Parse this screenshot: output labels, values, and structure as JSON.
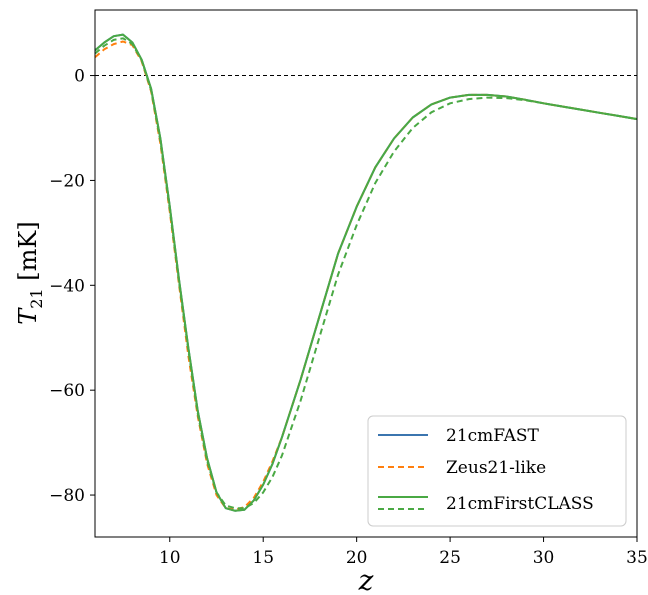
{
  "chart_data": {
    "type": "line",
    "xlabel": "z",
    "ylabel_main": "T",
    "ylabel_sub": "21",
    "ylabel_unit": " [mK]",
    "xlim": [
      6,
      35
    ],
    "ylim": [
      -88,
      12.5
    ],
    "xticks": [
      10,
      15,
      20,
      25,
      30,
      35
    ],
    "yticks": [
      0,
      -20,
      -40,
      -60,
      -80
    ],
    "ytick_labels": [
      "0",
      "−20",
      "−40",
      "−60",
      "−80"
    ],
    "hline": {
      "y": 0,
      "style": "dashed",
      "color": "#000000"
    },
    "legend_position": "lower-right",
    "series": [
      {
        "name": "21cmFAST",
        "color": "#3b75af",
        "style": "solid",
        "x": [
          6,
          6.5,
          7,
          7.5,
          8,
          8.5,
          9,
          9.5,
          10,
          10.5,
          11,
          11.5,
          12,
          12.5,
          13,
          13.5,
          14,
          14.5,
          15,
          15.5,
          16,
          17,
          18,
          19,
          20,
          21,
          22,
          23,
          24,
          25,
          26,
          27,
          28,
          29,
          30,
          31,
          32,
          33,
          34,
          35
        ],
        "y": [
          4.8,
          6.3,
          7.5,
          7.8,
          6.3,
          3.0,
          -2.5,
          -12.0,
          -25.0,
          -39.0,
          -52.0,
          -64.0,
          -73.0,
          -79.5,
          -82.5,
          -83.0,
          -82.8,
          -81.0,
          -78.0,
          -74.0,
          -69.0,
          -58.0,
          -46.0,
          -34.0,
          -25.0,
          -17.5,
          -12.0,
          -8.0,
          -5.5,
          -4.2,
          -3.7,
          -3.7,
          -4.0,
          -4.6,
          -5.3,
          -5.9,
          -6.5,
          -7.1,
          -7.7,
          -8.3
        ]
      },
      {
        "name": "Zeus21-like",
        "color": "#ff7f0e",
        "style": "dashed",
        "x": [
          6,
          6.5,
          7,
          7.5,
          8,
          8.5,
          9,
          9.5,
          10,
          10.5,
          11,
          11.5,
          12,
          12.5,
          13,
          13.5,
          14,
          14.5,
          15,
          15.5,
          16,
          17,
          18,
          19,
          20,
          21,
          22,
          23,
          24,
          25,
          26,
          27,
          28,
          29,
          30,
          31,
          32,
          33,
          34,
          35
        ],
        "y": [
          3.5,
          5.0,
          6.0,
          6.5,
          5.8,
          2.7,
          -3.0,
          -13.0,
          -26.0,
          -40.0,
          -53.5,
          -65.0,
          -74.0,
          -80.0,
          -82.5,
          -82.8,
          -82.3,
          -80.5,
          -77.5,
          -73.5,
          -69.0,
          -58.0,
          -46.0,
          -34.0,
          -25.0,
          -17.5,
          -12.0,
          -8.0,
          -5.5,
          -4.2,
          -3.7,
          -3.7,
          -4.0,
          -4.6,
          -5.3,
          -5.9,
          -6.5,
          -7.1,
          -7.7,
          -8.3
        ]
      },
      {
        "name": "21cmFirstCLASS",
        "color": "#4aa944",
        "style": "solid",
        "x": [
          6,
          6.5,
          7,
          7.5,
          8,
          8.5,
          9,
          9.5,
          10,
          10.5,
          11,
          11.5,
          12,
          12.5,
          13,
          13.5,
          14,
          14.5,
          15,
          15.5,
          16,
          17,
          18,
          19,
          20,
          21,
          22,
          23,
          24,
          25,
          26,
          27,
          28,
          29,
          30,
          31,
          32,
          33,
          34,
          35
        ],
        "y": [
          4.8,
          6.3,
          7.5,
          7.8,
          6.3,
          3.0,
          -2.5,
          -12.0,
          -25.0,
          -39.0,
          -52.0,
          -64.0,
          -73.0,
          -79.5,
          -82.5,
          -83.0,
          -82.8,
          -81.0,
          -78.0,
          -74.0,
          -69.0,
          -58.0,
          -46.0,
          -34.0,
          -25.0,
          -17.5,
          -12.0,
          -8.0,
          -5.5,
          -4.2,
          -3.7,
          -3.7,
          -4.0,
          -4.6,
          -5.3,
          -5.9,
          -6.5,
          -7.1,
          -7.7,
          -8.3
        ]
      },
      {
        "name": "",
        "color": "#4aa944",
        "style": "dashed",
        "x": [
          6,
          6.5,
          7,
          7.5,
          8,
          8.5,
          9,
          9.5,
          10,
          10.5,
          11,
          11.5,
          12,
          12.5,
          13,
          13.5,
          14,
          14.5,
          15,
          15.5,
          16,
          17,
          18,
          19,
          20,
          21,
          22,
          23,
          24,
          25,
          26,
          27,
          28,
          29,
          30,
          31,
          32,
          33,
          34,
          35
        ],
        "y": [
          4.2,
          5.7,
          6.8,
          7.1,
          6.0,
          2.9,
          -2.8,
          -12.5,
          -25.5,
          -39.5,
          -52.5,
          -64.5,
          -73.5,
          -79.5,
          -82.0,
          -82.5,
          -82.5,
          -81.5,
          -79.5,
          -76.5,
          -72.5,
          -62.0,
          -50.0,
          -38.0,
          -28.5,
          -20.5,
          -14.5,
          -10.0,
          -7.0,
          -5.3,
          -4.5,
          -4.2,
          -4.3,
          -4.7,
          -5.3,
          -5.9,
          -6.5,
          -7.1,
          -7.7,
          -8.3
        ]
      }
    ]
  }
}
